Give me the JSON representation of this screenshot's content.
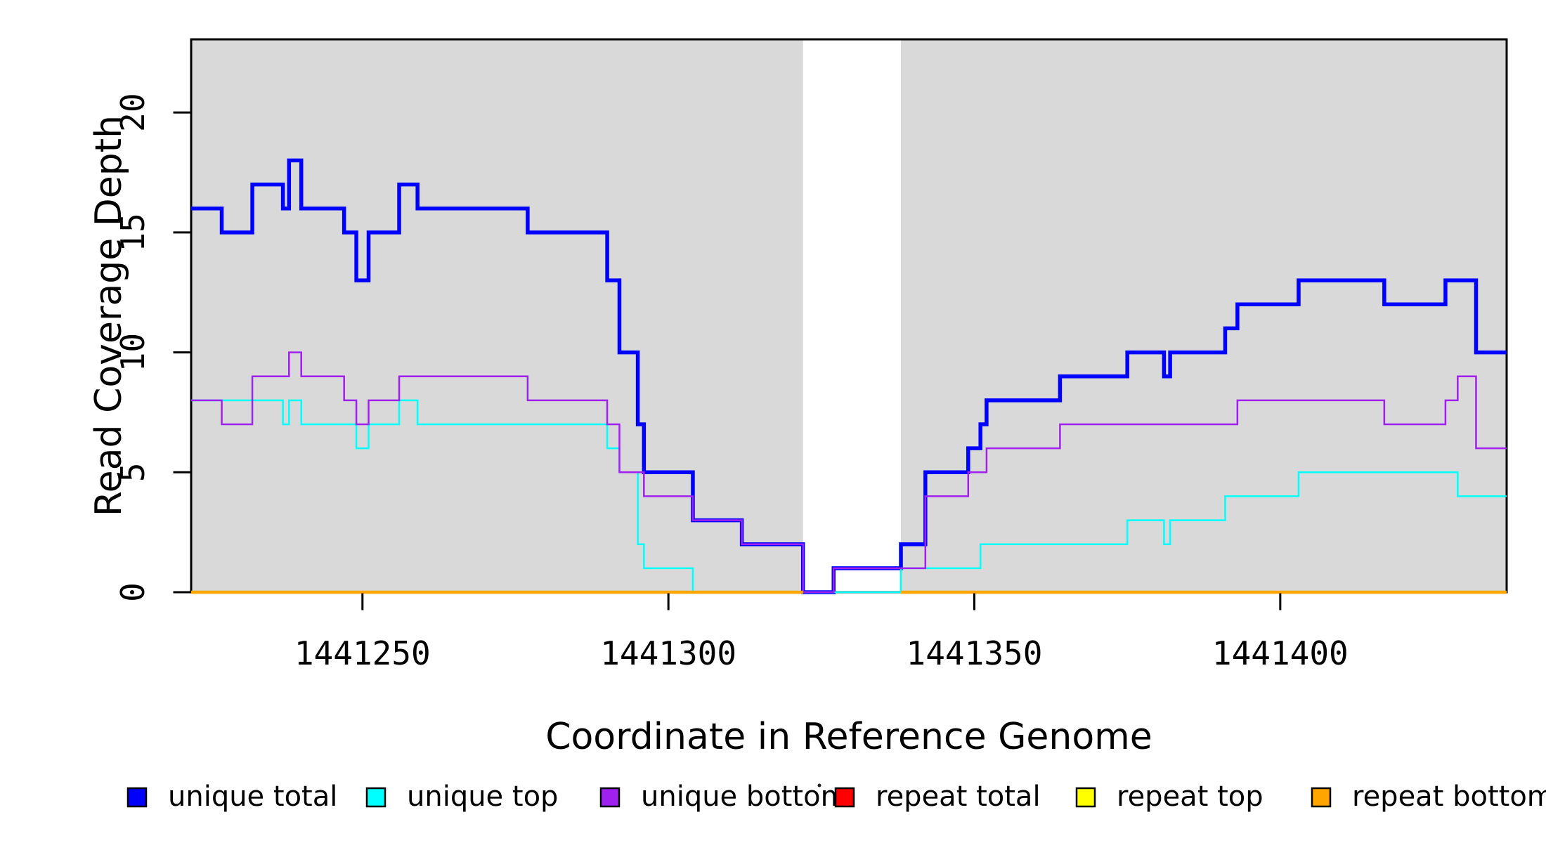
{
  "figure": {
    "background": "#FFFFFF",
    "box_color": "#000000",
    "shade_color": "#D9D9D9"
  },
  "chart_data": {
    "type": "line",
    "step_mode": "post",
    "title": "",
    "xlabel": "Coordinate in Reference Genome",
    "ylabel": "Read Coverage Depth",
    "xlim": [
      1441222,
      1441437
    ],
    "ylim": [
      0,
      23.05
    ],
    "x_ticks": [
      1441250,
      1441300,
      1441350,
      1441400
    ],
    "y_ticks": [
      0,
      5,
      10,
      15,
      20
    ],
    "grid": false,
    "shaded_regions": [
      [
        1441222,
        1441322
      ],
      [
        1441338,
        1441437
      ]
    ],
    "unshaded_gap": [
      1441322,
      1441338
    ],
    "series": [
      {
        "name": "unique total",
        "color": "#0000FF",
        "width": 5.5,
        "segments": [
          [
            1441222,
            1441227,
            16
          ],
          [
            1441227,
            1441232,
            15
          ],
          [
            1441232,
            1441237,
            17
          ],
          [
            1441237,
            1441238,
            16
          ],
          [
            1441238,
            1441240,
            18
          ],
          [
            1441240,
            1441247,
            16
          ],
          [
            1441247,
            1441249,
            15
          ],
          [
            1441249,
            1441251,
            13
          ],
          [
            1441251,
            1441256,
            15
          ],
          [
            1441256,
            1441259,
            17
          ],
          [
            1441259,
            1441277,
            16
          ],
          [
            1441277,
            1441290,
            15
          ],
          [
            1441290,
            1441292,
            13
          ],
          [
            1441292,
            1441295,
            10
          ],
          [
            1441295,
            1441296,
            7
          ],
          [
            1441296,
            1441304,
            5
          ],
          [
            1441304,
            1441312,
            3
          ],
          [
            1441312,
            1441322,
            2
          ],
          [
            1441322,
            1441327,
            0
          ],
          [
            1441327,
            1441338,
            1
          ],
          [
            1441338,
            1441342,
            2
          ],
          [
            1441342,
            1441349,
            5
          ],
          [
            1441349,
            1441351,
            6
          ],
          [
            1441351,
            1441352,
            7
          ],
          [
            1441352,
            1441364,
            8
          ],
          [
            1441364,
            1441375,
            9
          ],
          [
            1441375,
            1441381,
            10
          ],
          [
            1441381,
            1441382,
            9
          ],
          [
            1441382,
            1441391,
            10
          ],
          [
            1441391,
            1441393,
            11
          ],
          [
            1441393,
            1441403,
            12
          ],
          [
            1441403,
            1441417,
            13
          ],
          [
            1441417,
            1441427,
            12
          ],
          [
            1441427,
            1441432,
            13
          ],
          [
            1441432,
            1441437,
            10
          ]
        ]
      },
      {
        "name": "unique top",
        "color": "#00FFFF",
        "width": 2.5,
        "segments": [
          [
            1441222,
            1441237,
            8
          ],
          [
            1441237,
            1441238,
            7
          ],
          [
            1441238,
            1441240,
            8
          ],
          [
            1441240,
            1441249,
            7
          ],
          [
            1441249,
            1441251,
            6
          ],
          [
            1441251,
            1441256,
            7
          ],
          [
            1441256,
            1441259,
            8
          ],
          [
            1441259,
            1441290,
            7
          ],
          [
            1441290,
            1441292,
            6
          ],
          [
            1441292,
            1441295,
            5
          ],
          [
            1441295,
            1441296,
            2
          ],
          [
            1441296,
            1441304,
            1
          ],
          [
            1441304,
            1441338,
            0
          ],
          [
            1441338,
            1441351,
            1
          ],
          [
            1441351,
            1441375,
            2
          ],
          [
            1441375,
            1441381,
            3
          ],
          [
            1441381,
            1441382,
            2
          ],
          [
            1441382,
            1441391,
            3
          ],
          [
            1441391,
            1441403,
            4
          ],
          [
            1441403,
            1441429,
            5
          ],
          [
            1441429,
            1441437,
            4
          ]
        ]
      },
      {
        "name": "unique bottom",
        "color": "#A020F0",
        "width": 2.5,
        "segments": [
          [
            1441222,
            1441227,
            8
          ],
          [
            1441227,
            1441232,
            7
          ],
          [
            1441232,
            1441238,
            9
          ],
          [
            1441238,
            1441240,
            10
          ],
          [
            1441240,
            1441247,
            9
          ],
          [
            1441247,
            1441249,
            8
          ],
          [
            1441249,
            1441251,
            7
          ],
          [
            1441251,
            1441256,
            8
          ],
          [
            1441256,
            1441277,
            9
          ],
          [
            1441277,
            1441290,
            8
          ],
          [
            1441290,
            1441292,
            7
          ],
          [
            1441292,
            1441296,
            5
          ],
          [
            1441296,
            1441304,
            4
          ],
          [
            1441304,
            1441312,
            3
          ],
          [
            1441312,
            1441322,
            2
          ],
          [
            1441322,
            1441327,
            0
          ],
          [
            1441327,
            1441342,
            1
          ],
          [
            1441342,
            1441349,
            4
          ],
          [
            1441349,
            1441352,
            5
          ],
          [
            1441352,
            1441364,
            6
          ],
          [
            1441364,
            1441393,
            7
          ],
          [
            1441393,
            1441417,
            8
          ],
          [
            1441417,
            1441427,
            7
          ],
          [
            1441427,
            1441429,
            8
          ],
          [
            1441429,
            1441432,
            9
          ],
          [
            1441432,
            1441437,
            6
          ]
        ]
      },
      {
        "name": "repeat total",
        "color": "#FF0000",
        "width": 2.5,
        "segments": [
          [
            1441222,
            1441322,
            0
          ],
          [
            1441338,
            1441437,
            0
          ]
        ]
      },
      {
        "name": "repeat top",
        "color": "#FFFF00",
        "width": 2.5,
        "segments": [
          [
            1441222,
            1441322,
            0
          ],
          [
            1441338,
            1441437,
            0
          ]
        ]
      },
      {
        "name": "repeat bottom",
        "color": "#FFA500",
        "width": 4.5,
        "segments": [
          [
            1441222,
            1441322,
            0
          ],
          [
            1441338,
            1441437,
            0
          ]
        ]
      }
    ],
    "legend": {
      "position": "bottom",
      "items": [
        {
          "label": "unique total",
          "color": "#0000FF"
        },
        {
          "label": "unique top",
          "color": "#00FFFF"
        },
        {
          "label": "unique bottom",
          "color": "#A020F0"
        },
        {
          "label": "repeat total",
          "color": "#FF0000"
        },
        {
          "label": "repeat top",
          "color": "#FFFF00"
        },
        {
          "label": "repeat bottom",
          "color": "#FFA500"
        }
      ]
    }
  }
}
